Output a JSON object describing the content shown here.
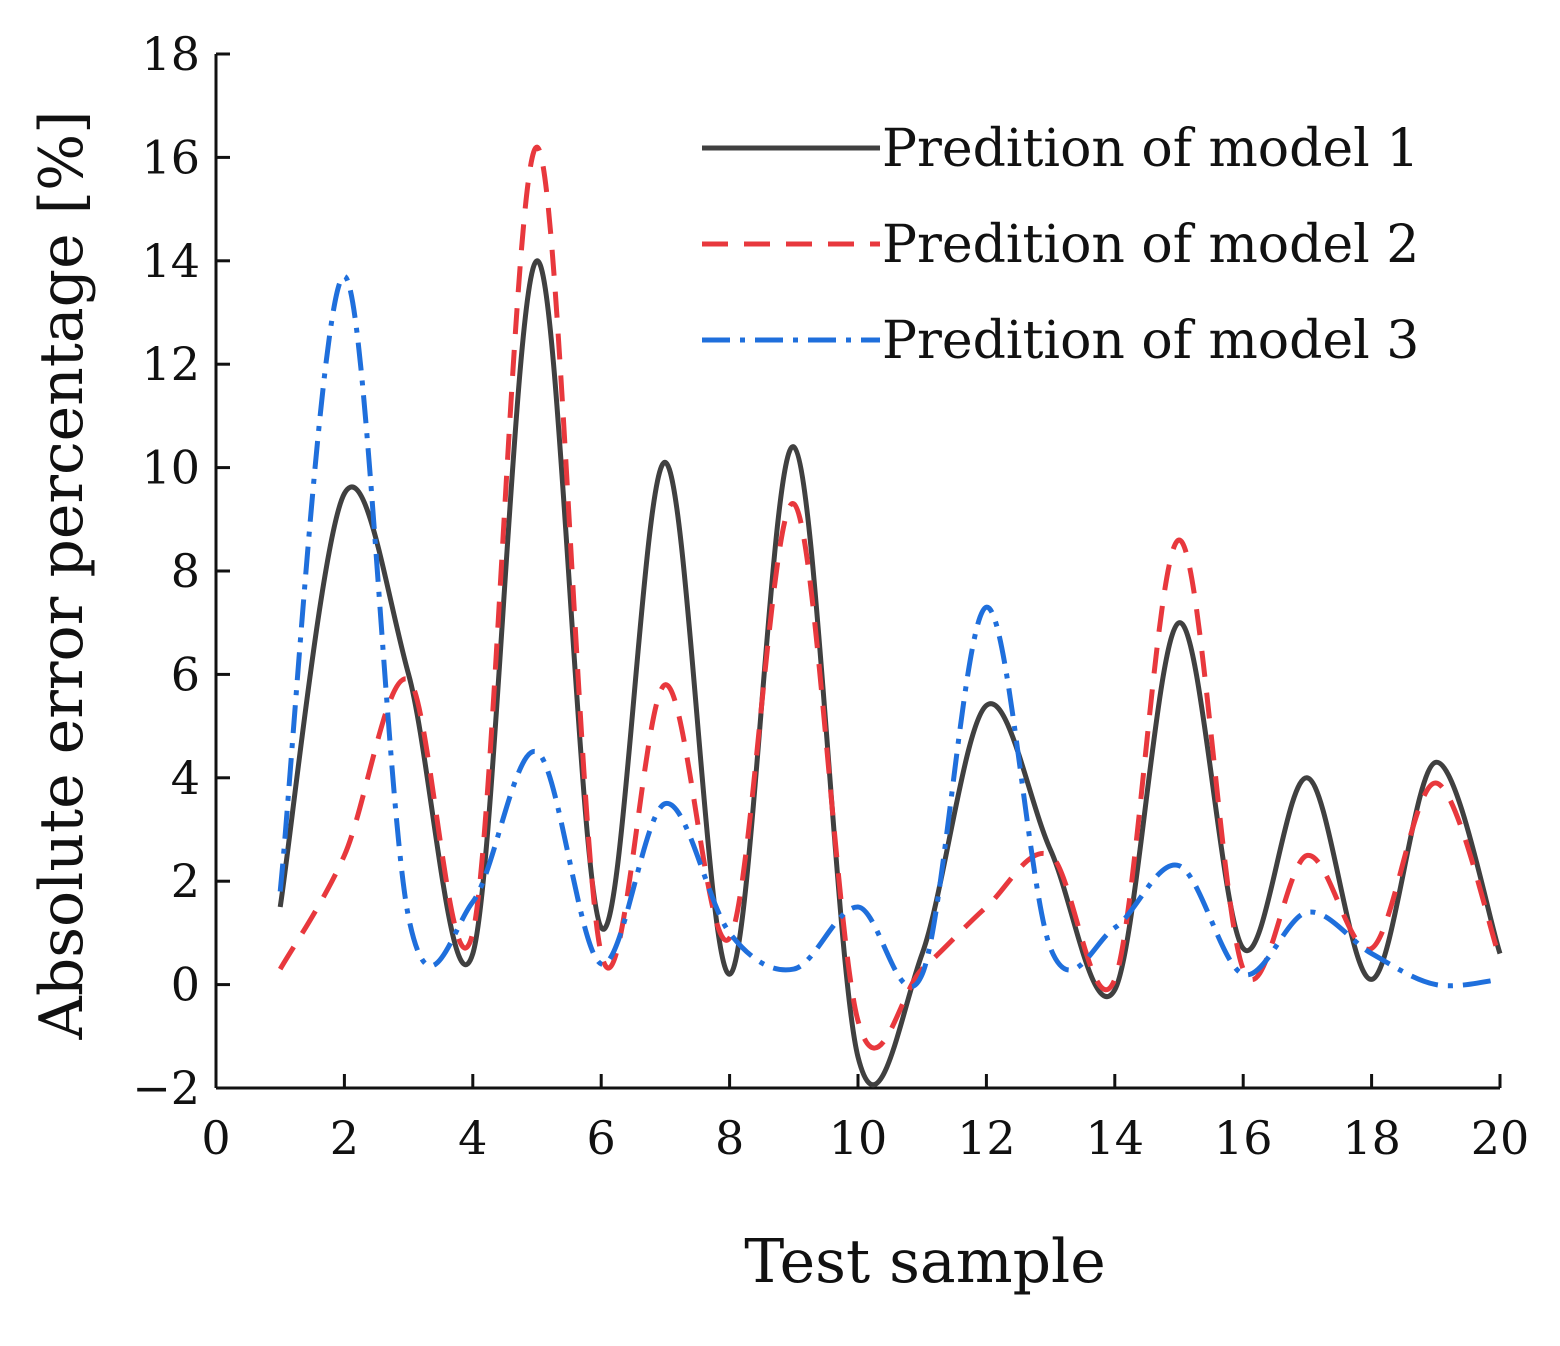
{
  "chart_data": {
    "type": "line",
    "title": "",
    "xlabel": "Test sample",
    "ylabel": "Absolute error percentage [%]",
    "xlim": [
      0,
      20
    ],
    "ylim": [
      -2,
      18
    ],
    "xticks": [
      0,
      2,
      4,
      6,
      8,
      10,
      12,
      14,
      16,
      18,
      20
    ],
    "yticks": [
      -2,
      0,
      2,
      4,
      6,
      8,
      10,
      12,
      14,
      16,
      18
    ],
    "xtick_labels": [
      "0",
      "2",
      "4",
      "6",
      "8",
      "10",
      "12",
      "14",
      "16",
      "18",
      "20"
    ],
    "ytick_labels": [
      "−2",
      "0",
      "2",
      "4",
      "6",
      "8",
      "10",
      "12",
      "14",
      "16",
      "18"
    ],
    "grid": false,
    "legend_position": "top-right",
    "x": [
      1,
      2,
      3,
      4,
      5,
      6,
      7,
      8,
      9,
      10,
      11,
      12,
      13,
      14,
      15,
      16,
      17,
      18,
      19,
      20
    ],
    "series": [
      {
        "name": "Predition of model 1",
        "color": "#404040",
        "dash": "solid",
        "values": [
          1.5,
          9.5,
          6.0,
          0.6,
          14.0,
          1.1,
          10.1,
          0.2,
          10.4,
          -1.4,
          0.6,
          5.4,
          2.6,
          -0.1,
          7.0,
          0.7,
          4.0,
          0.1,
          4.3,
          0.6
        ]
      },
      {
        "name": "Predition of model 2",
        "color": "#e8383d",
        "dash": "dashed",
        "values": [
          0.3,
          2.5,
          5.9,
          1.0,
          16.2,
          0.6,
          5.8,
          0.9,
          9.3,
          -0.7,
          0.3,
          1.5,
          2.5,
          0.1,
          8.6,
          0.3,
          2.5,
          0.7,
          3.9,
          0.5
        ]
      },
      {
        "name": "Predition of model 3",
        "color": "#1f6fdc",
        "dash": "dashdot",
        "values": [
          1.8,
          13.7,
          1.3,
          1.6,
          4.5,
          0.4,
          3.5,
          1.0,
          0.3,
          1.5,
          0.2,
          7.3,
          0.7,
          1.1,
          2.3,
          0.2,
          1.4,
          0.6,
          0.0,
          0.1
        ]
      }
    ]
  }
}
